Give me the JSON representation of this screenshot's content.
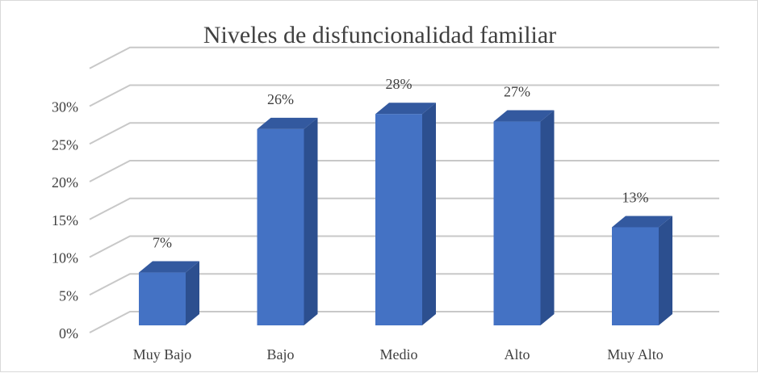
{
  "chart_data": {
    "type": "bar",
    "title": "Niveles de disfuncionalidad familiar",
    "categories": [
      "Muy Bajo",
      "Bajo",
      "Medio",
      "Alto",
      "Muy Alto"
    ],
    "values": [
      7,
      26,
      28,
      27,
      13
    ],
    "data_labels": [
      "7%",
      "26%",
      "28%",
      "27%",
      "13%"
    ],
    "y_ticks": [
      "0%",
      "5%",
      "10%",
      "15%",
      "20%",
      "25%",
      "30%"
    ],
    "ylim": [
      0,
      30
    ],
    "grid": true,
    "legend": "none",
    "style": "3d-column",
    "colors": {
      "bar_front": "#4472c4",
      "bar_side": "#2c4f8f",
      "bar_top": "#33599f",
      "grid": "#c8c8c8"
    }
  }
}
